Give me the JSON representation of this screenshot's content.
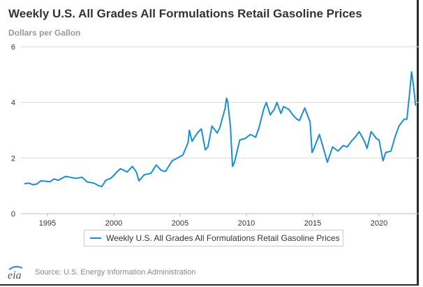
{
  "chart_data": {
    "type": "line",
    "title": "Weekly U.S. All Grades All Formulations Retail Gasoline Prices",
    "subtitle": "",
    "xlabel": "",
    "ylabel": "Dollars per Gallon",
    "xlim": [
      1993.0,
      2023.0
    ],
    "ylim": [
      0,
      6
    ],
    "x_ticks": [
      1995,
      2000,
      2005,
      2010,
      2015,
      2020
    ],
    "y_ticks": [
      0,
      2,
      4,
      6
    ],
    "grid": "horizontal",
    "legend_position": "bottom-center",
    "series": [
      {
        "name": "Weekly U.S. All Grades All Formulations Retail Gasoline Prices",
        "color": "#1a8fcf",
        "x": [
          1993.3,
          1993.6,
          1993.9,
          1994.2,
          1994.5,
          1994.8,
          1995.2,
          1995.5,
          1995.8,
          1996.2,
          1996.4,
          1996.8,
          1997.2,
          1997.6,
          1998.0,
          1998.5,
          1998.9,
          1999.1,
          1999.4,
          1999.8,
          2000.2,
          2000.5,
          2000.8,
          2001.0,
          2001.4,
          2001.7,
          2001.9,
          2002.3,
          2002.8,
          2003.2,
          2003.6,
          2003.9,
          2004.4,
          2004.8,
          2005.2,
          2005.6,
          2005.7,
          2005.9,
          2006.3,
          2006.6,
          2006.9,
          2007.1,
          2007.4,
          2007.8,
          2008.0,
          2008.4,
          2008.5,
          2008.6,
          2008.8,
          2008.95,
          2009.1,
          2009.5,
          2009.9,
          2010.3,
          2010.7,
          2010.95,
          2011.3,
          2011.5,
          2011.8,
          2012.1,
          2012.3,
          2012.6,
          2012.8,
          2013.2,
          2013.5,
          2013.8,
          2014.0,
          2014.4,
          2014.8,
          2014.95,
          2015.1,
          2015.5,
          2015.9,
          2016.1,
          2016.5,
          2016.9,
          2017.3,
          2017.6,
          2017.9,
          2018.2,
          2018.5,
          2018.9,
          2019.1,
          2019.4,
          2019.8,
          2020.0,
          2020.3,
          2020.5,
          2020.9,
          2021.2,
          2021.5,
          2021.9,
          2022.1,
          2022.3,
          2022.45,
          2022.6,
          2022.75
        ],
        "values": [
          1.08,
          1.1,
          1.04,
          1.07,
          1.18,
          1.17,
          1.15,
          1.25,
          1.2,
          1.3,
          1.34,
          1.3,
          1.27,
          1.31,
          1.14,
          1.1,
          1.0,
          0.98,
          1.2,
          1.28,
          1.48,
          1.62,
          1.55,
          1.5,
          1.7,
          1.5,
          1.18,
          1.4,
          1.45,
          1.75,
          1.55,
          1.52,
          1.9,
          2.0,
          2.1,
          2.55,
          3.0,
          2.6,
          2.9,
          3.05,
          2.3,
          2.4,
          3.15,
          2.9,
          3.1,
          3.8,
          4.15,
          4.0,
          3.1,
          1.7,
          1.85,
          2.65,
          2.7,
          2.85,
          2.75,
          3.1,
          3.75,
          4.0,
          3.55,
          3.75,
          4.0,
          3.6,
          3.85,
          3.75,
          3.55,
          3.4,
          3.35,
          3.8,
          3.3,
          2.2,
          2.35,
          2.85,
          2.2,
          1.85,
          2.4,
          2.25,
          2.45,
          2.4,
          2.6,
          2.75,
          2.95,
          2.6,
          2.35,
          2.95,
          2.7,
          2.65,
          1.9,
          2.2,
          2.25,
          2.75,
          3.15,
          3.4,
          3.4,
          4.3,
          5.1,
          4.6,
          3.9
        ]
      }
    ]
  },
  "source": "Source: U.S. Energy Information Administration",
  "logo_text": "eia",
  "colors": {
    "line": "#1a8fcf",
    "grid": "#d9d9d9",
    "title": "#333333",
    "unit_label": "#999999"
  }
}
